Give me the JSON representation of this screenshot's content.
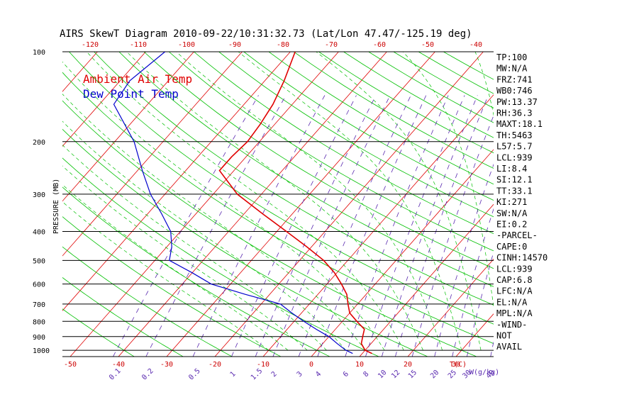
{
  "chart_data": {
    "type": "line",
    "title": "AIRS SkewT Diagram 2010-09-22/10:31:32.73 (Lat/Lon 47.47/-125.19 deg)",
    "ylabel": "PRESSURE (MB)",
    "xlabel": "T(C)",
    "mixing_ratio_unit": "W(g/kg)",
    "ylim": [
      1050,
      100
    ],
    "xlim": [
      -50,
      40
    ],
    "y_scale": "log",
    "pressure_ticks": [
      100,
      200,
      300,
      400,
      500,
      600,
      700,
      800,
      900,
      1000
    ],
    "pressure_tick_labels": [
      "100",
      "200",
      "300",
      "400",
      "500",
      "600",
      "700",
      "800",
      "900",
      "1000"
    ],
    "bottom_temp_ticks": [
      -50,
      -40,
      -30,
      -20,
      -10,
      0,
      10,
      20,
      30
    ],
    "bottom_temp_labels": [
      "-50",
      "-40",
      "-30",
      "-20",
      "-10",
      "0",
      "10",
      "20",
      "30"
    ],
    "top_temp_ticks": [
      -120,
      -110,
      -100,
      -90,
      -80,
      -70,
      -60,
      -50,
      -40
    ],
    "top_temp_labels": [
      "-120",
      "-110",
      "-100",
      "-90",
      "-80",
      "-70",
      "-60",
      "-50",
      "-40"
    ],
    "mixing_ratio_labels": [
      "0.1",
      "0.2",
      "0.5",
      "1",
      "1.5",
      "2",
      "3",
      "4",
      "6",
      "8",
      "10",
      "12",
      "15",
      "20",
      "25",
      "30",
      "40"
    ],
    "legend": [
      "Ambient Air Temp",
      "Dew Point Temp"
    ],
    "series": [
      {
        "name": "Ambient Air Temp",
        "color": "#e00000",
        "points": [
          {
            "p": 1025,
            "t": 12
          },
          {
            "p": 1000,
            "t": 10
          },
          {
            "p": 950,
            "t": 8
          },
          {
            "p": 900,
            "t": 7
          },
          {
            "p": 850,
            "t": 6
          },
          {
            "p": 800,
            "t": 3
          },
          {
            "p": 750,
            "t": 0
          },
          {
            "p": 700,
            "t": -2
          },
          {
            "p": 650,
            "t": -4
          },
          {
            "p": 600,
            "t": -7
          },
          {
            "p": 550,
            "t": -10.5
          },
          {
            "p": 500,
            "t": -15
          },
          {
            "p": 450,
            "t": -21
          },
          {
            "p": 400,
            "t": -28
          },
          {
            "p": 350,
            "t": -36
          },
          {
            "p": 300,
            "t": -45
          },
          {
            "p": 250,
            "t": -53
          },
          {
            "p": 225,
            "t": -53
          },
          {
            "p": 200,
            "t": -52.5
          },
          {
            "p": 175,
            "t": -53
          },
          {
            "p": 150,
            "t": -54
          },
          {
            "p": 125,
            "t": -56
          },
          {
            "p": 100,
            "t": -59
          }
        ]
      },
      {
        "name": "Dew Point Temp",
        "color": "#0000cc",
        "points": [
          {
            "p": 1025,
            "t": 8
          },
          {
            "p": 1000,
            "t": 6
          },
          {
            "p": 950,
            "t": 3
          },
          {
            "p": 900,
            "t": 0
          },
          {
            "p": 850,
            "t": -4
          },
          {
            "p": 800,
            "t": -8
          },
          {
            "p": 750,
            "t": -12
          },
          {
            "p": 700,
            "t": -16
          },
          {
            "p": 650,
            "t": -25
          },
          {
            "p": 600,
            "t": -34
          },
          {
            "p": 550,
            "t": -40
          },
          {
            "p": 500,
            "t": -47
          },
          {
            "p": 450,
            "t": -49
          },
          {
            "p": 400,
            "t": -52
          },
          {
            "p": 350,
            "t": -57
          },
          {
            "p": 300,
            "t": -63
          },
          {
            "p": 250,
            "t": -69
          },
          {
            "p": 200,
            "t": -76
          },
          {
            "p": 150,
            "t": -87
          },
          {
            "p": 125,
            "t": -88
          },
          {
            "p": 100,
            "t": -86
          }
        ]
      }
    ],
    "indices": [
      "TP:100",
      "MW:N/A",
      "FRZ:741",
      "WB0:746",
      "PW:13.37",
      "RH:36.3",
      "MAXT:18.1",
      "TH:5463",
      "L57:5.7",
      "LCL:939",
      "LI:8.4",
      "SI:12.1",
      "TT:33.1",
      "KI:271",
      "SW:N/A",
      "EI:0.2",
      "-PARCEL-",
      "CAPE:0",
      "CINH:14570",
      "LCL:939",
      "CAP:6.8",
      "LFC:N/A",
      "EL:N/A",
      "MPL:N/A",
      "-WIND-",
      "NOT",
      "AVAIL"
    ],
    "colors": {
      "isotherm": "#e00000",
      "dry_adiabat": "#00c000",
      "moist_adiabat": "#00c000",
      "mixing_ratio": "#5a2ab0",
      "axis_labels_bottom": "#cc0000",
      "mixing_labels": "#5a2ab0",
      "isobar": "#000000"
    }
  }
}
